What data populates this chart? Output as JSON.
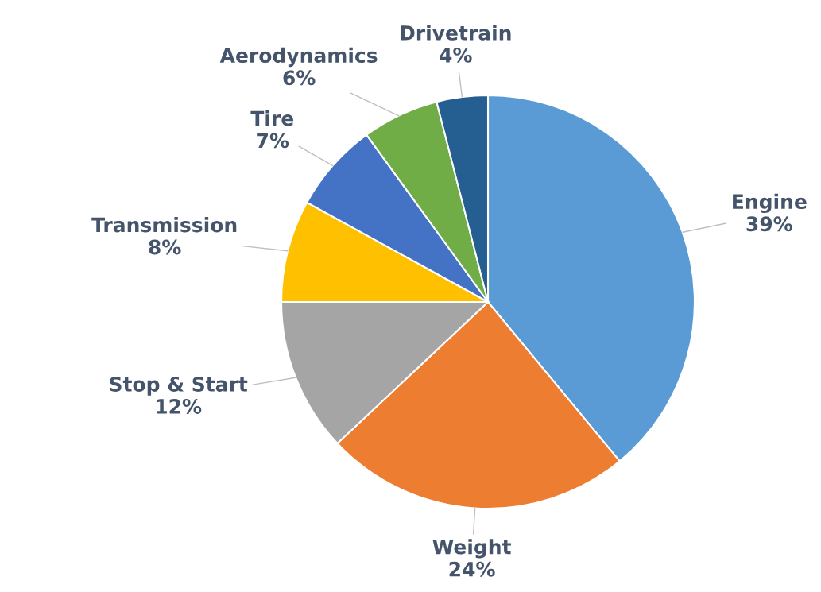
{
  "chart_data": {
    "type": "pie",
    "categories": [
      "Engine",
      "Weight",
      "Stop & Start",
      "Transmission",
      "Tire",
      "Aerodynamics",
      "Drivetrain"
    ],
    "values": [
      39,
      24,
      12,
      8,
      7,
      6,
      4
    ],
    "colors": [
      "#5b9bd5",
      "#ed7d31",
      "#a5a5a5",
      "#ffc000",
      "#4472c4",
      "#70ad47",
      "#255e91"
    ],
    "value_labels": [
      "39%",
      "24%",
      "12%",
      "8%",
      "7%",
      "6%",
      "4%"
    ]
  }
}
